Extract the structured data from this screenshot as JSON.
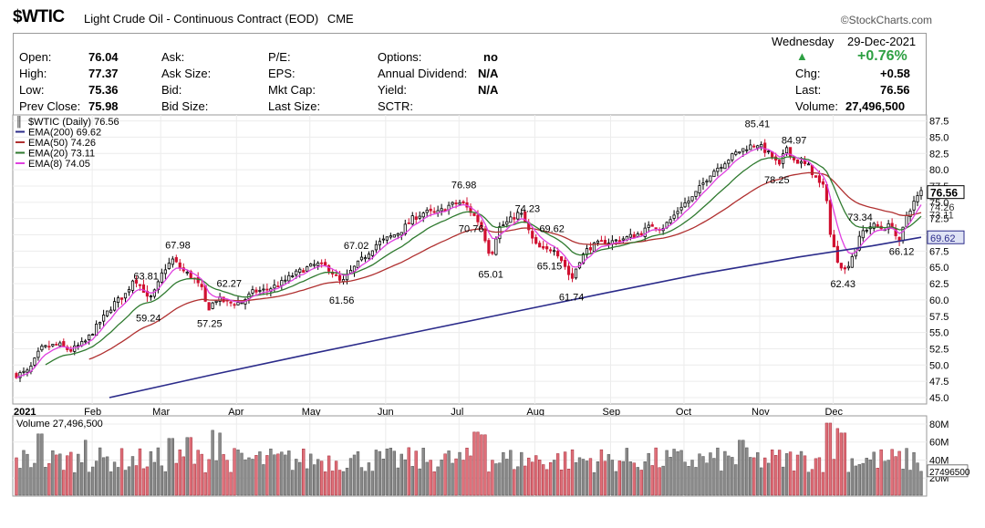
{
  "header": {
    "symbol": "$WTIC",
    "name": "Light Crude Oil - Continuous Contract (EOD)",
    "exchange": "CME",
    "brand": "StockCharts.com"
  },
  "quote": {
    "open_label": "Open:",
    "open": "76.04",
    "high_label": "High:",
    "high": "77.37",
    "low_label": "Low:",
    "low": "75.36",
    "prev_close_label": "Prev Close:",
    "prev_close": "75.98",
    "ask_label": "Ask:",
    "ask_size_label": "Ask Size:",
    "bid_label": "Bid:",
    "bid_size_label": "Bid Size:",
    "pe_label": "P/E:",
    "eps_label": "EPS:",
    "mkt_cap_label": "Mkt Cap:",
    "last_size_label": "Last Size:",
    "options_label": "Options:",
    "options": "no",
    "annual_dividend_label": "Annual Dividend:",
    "annual_dividend": "N/A",
    "yield_label": "Yield:",
    "yield": "N/A",
    "sctr_label": "SCTR:",
    "day": "Wednesday",
    "date": "29-Dec-2021",
    "pct_change": "+0.76%",
    "chg_label": "Chg:",
    "chg": "+0.58",
    "last_label": "Last:",
    "last": "76.56",
    "volume_label": "Volume:",
    "volume": "27,496,500"
  },
  "chart_data": {
    "type": "candlestick",
    "legend": [
      {
        "label": "$WTIC (Daily) 76.56",
        "color": "#000000"
      },
      {
        "label": "EMA(200) 69.62",
        "color": "#2b2b8a"
      },
      {
        "label": "EMA(50) 74.26",
        "color": "#b03030"
      },
      {
        "label": "EMA(20) 73.11",
        "color": "#2f7a2f"
      },
      {
        "label": "EMA(8) 74.05",
        "color": "#e040e0"
      }
    ],
    "x_ticks": [
      "2021",
      "Feb",
      "Mar",
      "Apr",
      "May",
      "Jun",
      "Jul",
      "Aug",
      "Sep",
      "Oct",
      "Nov",
      "Dec"
    ],
    "y_ticks": [
      "87.5",
      "85.0",
      "82.5",
      "80.0",
      "77.5",
      "75.0",
      "72.5",
      "70.0",
      "67.5",
      "65.0",
      "62.5",
      "60.0",
      "57.5",
      "55.0",
      "52.5",
      "50.0",
      "47.5",
      "45.0"
    ],
    "ylim": [
      45,
      88
    ],
    "price_path": [
      {
        "t": 0,
        "v": 48.5
      },
      {
        "t": 5,
        "v": 49.0
      },
      {
        "t": 10,
        "v": 52.5
      },
      {
        "t": 17,
        "v": 53.2
      },
      {
        "t": 22,
        "v": 52.2
      },
      {
        "t": 28,
        "v": 53.5
      },
      {
        "t": 34,
        "v": 56.5
      },
      {
        "t": 40,
        "v": 59.5
      },
      {
        "t": 45,
        "v": 61.0
      },
      {
        "t": 48,
        "v": 63.5
      },
      {
        "t": 52,
        "v": 61.5
      },
      {
        "t": 54,
        "v": 59.8
      },
      {
        "t": 57,
        "v": 61.5
      },
      {
        "t": 60,
        "v": 64.5
      },
      {
        "t": 64,
        "v": 66.2
      },
      {
        "t": 68,
        "v": 64.5
      },
      {
        "t": 72,
        "v": 63.5
      },
      {
        "t": 76,
        "v": 61.5
      },
      {
        "t": 78,
        "v": 58.5
      },
      {
        "t": 82,
        "v": 60.2
      },
      {
        "t": 87,
        "v": 59.5
      },
      {
        "t": 92,
        "v": 59.6
      },
      {
        "t": 97,
        "v": 61.3
      },
      {
        "t": 102,
        "v": 61.5
      },
      {
        "t": 108,
        "v": 62.5
      },
      {
        "t": 113,
        "v": 63.8
      },
      {
        "t": 118,
        "v": 64.8
      },
      {
        "t": 123,
        "v": 65.5
      },
      {
        "t": 128,
        "v": 64.8
      },
      {
        "t": 133,
        "v": 62.5
      },
      {
        "t": 137,
        "v": 64.5
      },
      {
        "t": 142,
        "v": 66.5
      },
      {
        "t": 147,
        "v": 68.5
      },
      {
        "t": 152,
        "v": 69.5
      },
      {
        "t": 157,
        "v": 70.5
      },
      {
        "t": 162,
        "v": 72.5
      },
      {
        "t": 167,
        "v": 73.5
      },
      {
        "t": 172,
        "v": 73.3
      },
      {
        "t": 177,
        "v": 74.5
      },
      {
        "t": 182,
        "v": 75.0
      },
      {
        "t": 186,
        "v": 73.5
      },
      {
        "t": 190,
        "v": 71.5
      },
      {
        "t": 194,
        "v": 66.5
      },
      {
        "t": 197,
        "v": 71.0
      },
      {
        "t": 201,
        "v": 72.0
      },
      {
        "t": 206,
        "v": 73.5
      },
      {
        "t": 209,
        "v": 71.0
      },
      {
        "t": 212,
        "v": 68.5
      },
      {
        "t": 216,
        "v": 67.5
      },
      {
        "t": 220,
        "v": 68.0
      },
      {
        "t": 224,
        "v": 65.5
      },
      {
        "t": 227,
        "v": 63.0
      },
      {
        "t": 230,
        "v": 66.0
      },
      {
        "t": 234,
        "v": 68.0
      },
      {
        "t": 239,
        "v": 68.8
      },
      {
        "t": 244,
        "v": 69.0
      },
      {
        "t": 249,
        "v": 69.5
      },
      {
        "t": 255,
        "v": 70.2
      },
      {
        "t": 260,
        "v": 71.5
      },
      {
        "t": 264,
        "v": 71.0
      },
      {
        "t": 268,
        "v": 72.5
      },
      {
        "t": 272,
        "v": 74.5
      },
      {
        "t": 276,
        "v": 75.5
      },
      {
        "t": 280,
        "v": 77.5
      },
      {
        "t": 284,
        "v": 79.5
      },
      {
        "t": 289,
        "v": 81.0
      },
      {
        "t": 294,
        "v": 82.5
      },
      {
        "t": 299,
        "v": 83.5
      },
      {
        "t": 303,
        "v": 84.0
      },
      {
        "t": 306,
        "v": 83.0
      },
      {
        "t": 309,
        "v": 82.0
      },
      {
        "t": 312,
        "v": 80.5
      },
      {
        "t": 315,
        "v": 83.5
      },
      {
        "t": 318,
        "v": 81.5
      },
      {
        "t": 321,
        "v": 81.0
      },
      {
        "t": 324,
        "v": 80.5
      },
      {
        "t": 328,
        "v": 78.0
      },
      {
        "t": 331,
        "v": 77.0
      },
      {
        "t": 333,
        "v": 69.5
      },
      {
        "t": 336,
        "v": 66.0
      },
      {
        "t": 339,
        "v": 64.5
      },
      {
        "t": 342,
        "v": 67.0
      },
      {
        "t": 346,
        "v": 70.5
      },
      {
        "t": 350,
        "v": 71.5
      },
      {
        "t": 354,
        "v": 71.0
      },
      {
        "t": 358,
        "v": 71.5
      },
      {
        "t": 361,
        "v": 68.5
      },
      {
        "t": 364,
        "v": 73.0
      },
      {
        "t": 367,
        "v": 75.0
      },
      {
        "t": 370,
        "v": 76.6
      }
    ],
    "ema200_path": [
      {
        "t": 38,
        "v": 45.0
      },
      {
        "t": 80,
        "v": 48.5
      },
      {
        "t": 120,
        "v": 51.7
      },
      {
        "t": 160,
        "v": 54.8
      },
      {
        "t": 200,
        "v": 57.9
      },
      {
        "t": 240,
        "v": 61.0
      },
      {
        "t": 280,
        "v": 64.0
      },
      {
        "t": 320,
        "v": 66.6
      },
      {
        "t": 350,
        "v": 68.3
      },
      {
        "t": 370,
        "v": 69.62
      }
    ],
    "price_annotations": [
      {
        "t": 53,
        "label": "63.81",
        "pos": "above"
      },
      {
        "t": 66,
        "label": "67.98",
        "pos": "above"
      },
      {
        "t": 54,
        "label": "59.24",
        "pos": "below"
      },
      {
        "t": 87,
        "label": "62.27",
        "pos": "above"
      },
      {
        "t": 79,
        "label": "57.25",
        "pos": "below"
      },
      {
        "t": 133,
        "label": "61.56",
        "pos": "below"
      },
      {
        "t": 139,
        "label": "67.02",
        "pos": "above"
      },
      {
        "t": 183,
        "label": "76.98",
        "pos": "above"
      },
      {
        "t": 186,
        "label": "70.76",
        "pos": "below"
      },
      {
        "t": 194,
        "label": "65.01",
        "pos": "below"
      },
      {
        "t": 209,
        "label": "74.23",
        "pos": "above"
      },
      {
        "t": 219,
        "label": "69.62",
        "pos": "above"
      },
      {
        "t": 218,
        "label": "65.15",
        "pos": "below"
      },
      {
        "t": 227,
        "label": "61.74",
        "pos": "below"
      },
      {
        "t": 303,
        "label": "85.41",
        "pos": "above"
      },
      {
        "t": 318,
        "label": "84.97",
        "pos": "above"
      },
      {
        "t": 311,
        "label": "78.25",
        "pos": "below"
      },
      {
        "t": 345,
        "label": "73.34",
        "pos": "above"
      },
      {
        "t": 338,
        "label": "62.43",
        "pos": "below"
      },
      {
        "t": 362,
        "label": "66.12",
        "pos": "below"
      }
    ],
    "right_tags": [
      {
        "label": "77.5",
        "v": 77.5,
        "style": "text"
      },
      {
        "label": "76.56",
        "v": 76.56,
        "style": "last"
      },
      {
        "label": "74.26",
        "v": 74.26,
        "style": "text"
      },
      {
        "label": "73.11",
        "v": 73.11,
        "style": "text"
      },
      {
        "label": "69.62",
        "v": 69.62,
        "style": "ema200"
      }
    ],
    "volume": {
      "legend": "Volume 27,496,500",
      "y_ticks": [
        "80M",
        "60M",
        "40M",
        "20M"
      ],
      "last_tag": "27496500",
      "max": 85,
      "big_bars": [
        {
          "t": 80,
          "v": 73
        },
        {
          "t": 83,
          "v": 70
        },
        {
          "t": 71,
          "v": 65
        },
        {
          "t": 63,
          "v": 64
        },
        {
          "t": 188,
          "v": 71
        },
        {
          "t": 191,
          "v": 68
        },
        {
          "t": 296,
          "v": 62
        },
        {
          "t": 332,
          "v": 81
        },
        {
          "t": 336,
          "v": 75
        },
        {
          "t": 338,
          "v": 70
        },
        {
          "t": 10,
          "v": 69
        },
        {
          "t": 28,
          "v": 62
        }
      ]
    }
  }
}
